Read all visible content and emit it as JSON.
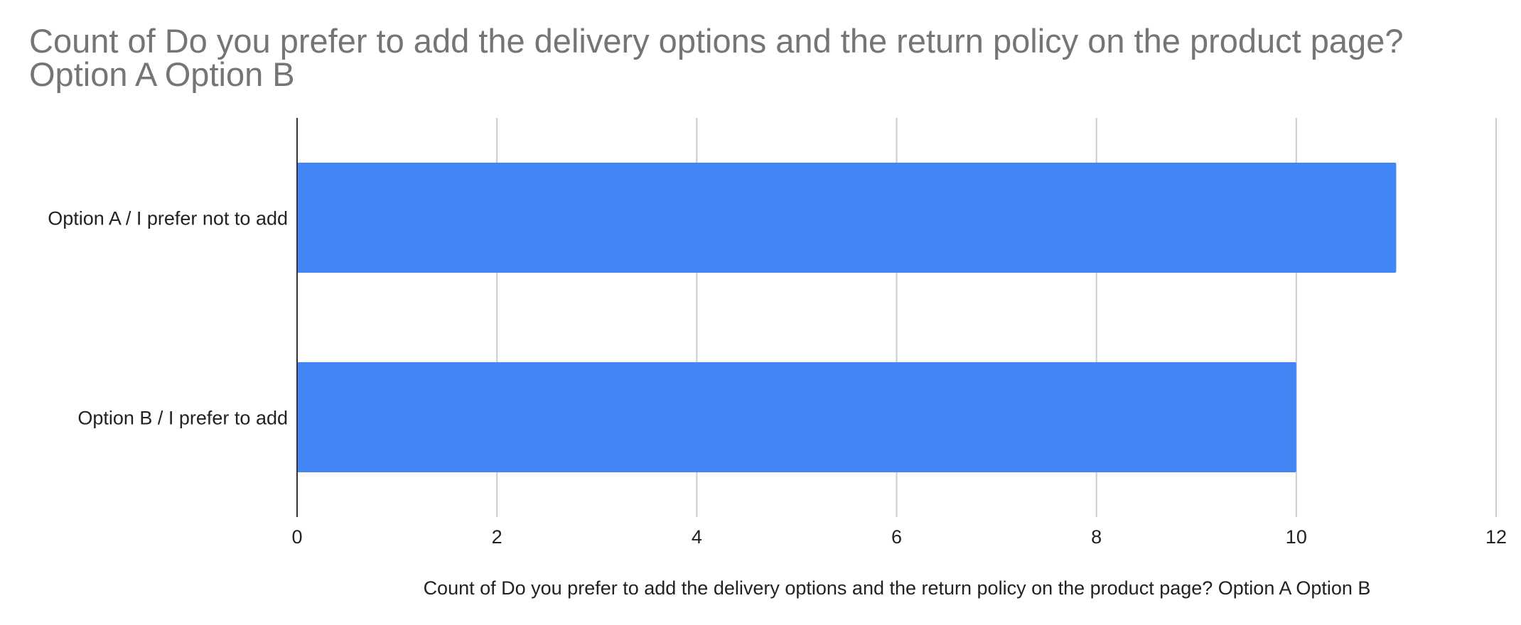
{
  "chart_data": {
    "type": "bar",
    "orientation": "horizontal",
    "title": "Count of Do you prefer to add the delivery options and the return policy on the product page? Option A Option B",
    "categories": [
      "Option A / I prefer not to add",
      "Option B / I prefer to add"
    ],
    "values": [
      11,
      10
    ],
    "xlabel": "Count of Do you prefer to add the delivery options and the return policy on the product page?  Option A Option B",
    "ylabel": "",
    "xlim": [
      0,
      12
    ],
    "xticks": [
      "0",
      "2",
      "4",
      "6",
      "8",
      "10",
      "12"
    ],
    "grid": "vertical",
    "legend": "none",
    "bar_color": "#4285f4"
  }
}
